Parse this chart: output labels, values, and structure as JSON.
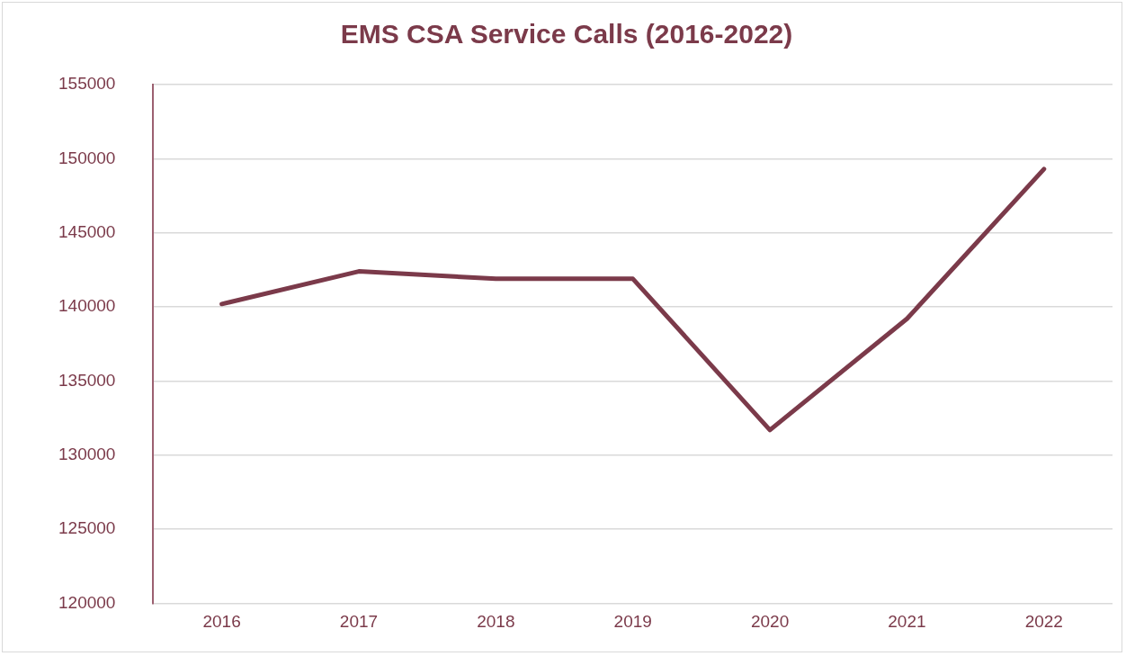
{
  "chart_data": {
    "type": "line",
    "title": "EMS CSA Service Calls (2016-2022)",
    "categories": [
      "2016",
      "2017",
      "2018",
      "2019",
      "2020",
      "2021",
      "2022"
    ],
    "series": [
      {
        "color": "#7b3a4a",
        "values": [
          140200,
          142400,
          141900,
          141900,
          131700,
          139200,
          149300
        ]
      }
    ],
    "ylim": [
      120000,
      155000
    ],
    "yticks": [
      120000,
      125000,
      130000,
      135000,
      140000,
      145000,
      150000,
      155000
    ],
    "grid": "y",
    "legend": false,
    "marker": "none",
    "line_style": "solid"
  }
}
